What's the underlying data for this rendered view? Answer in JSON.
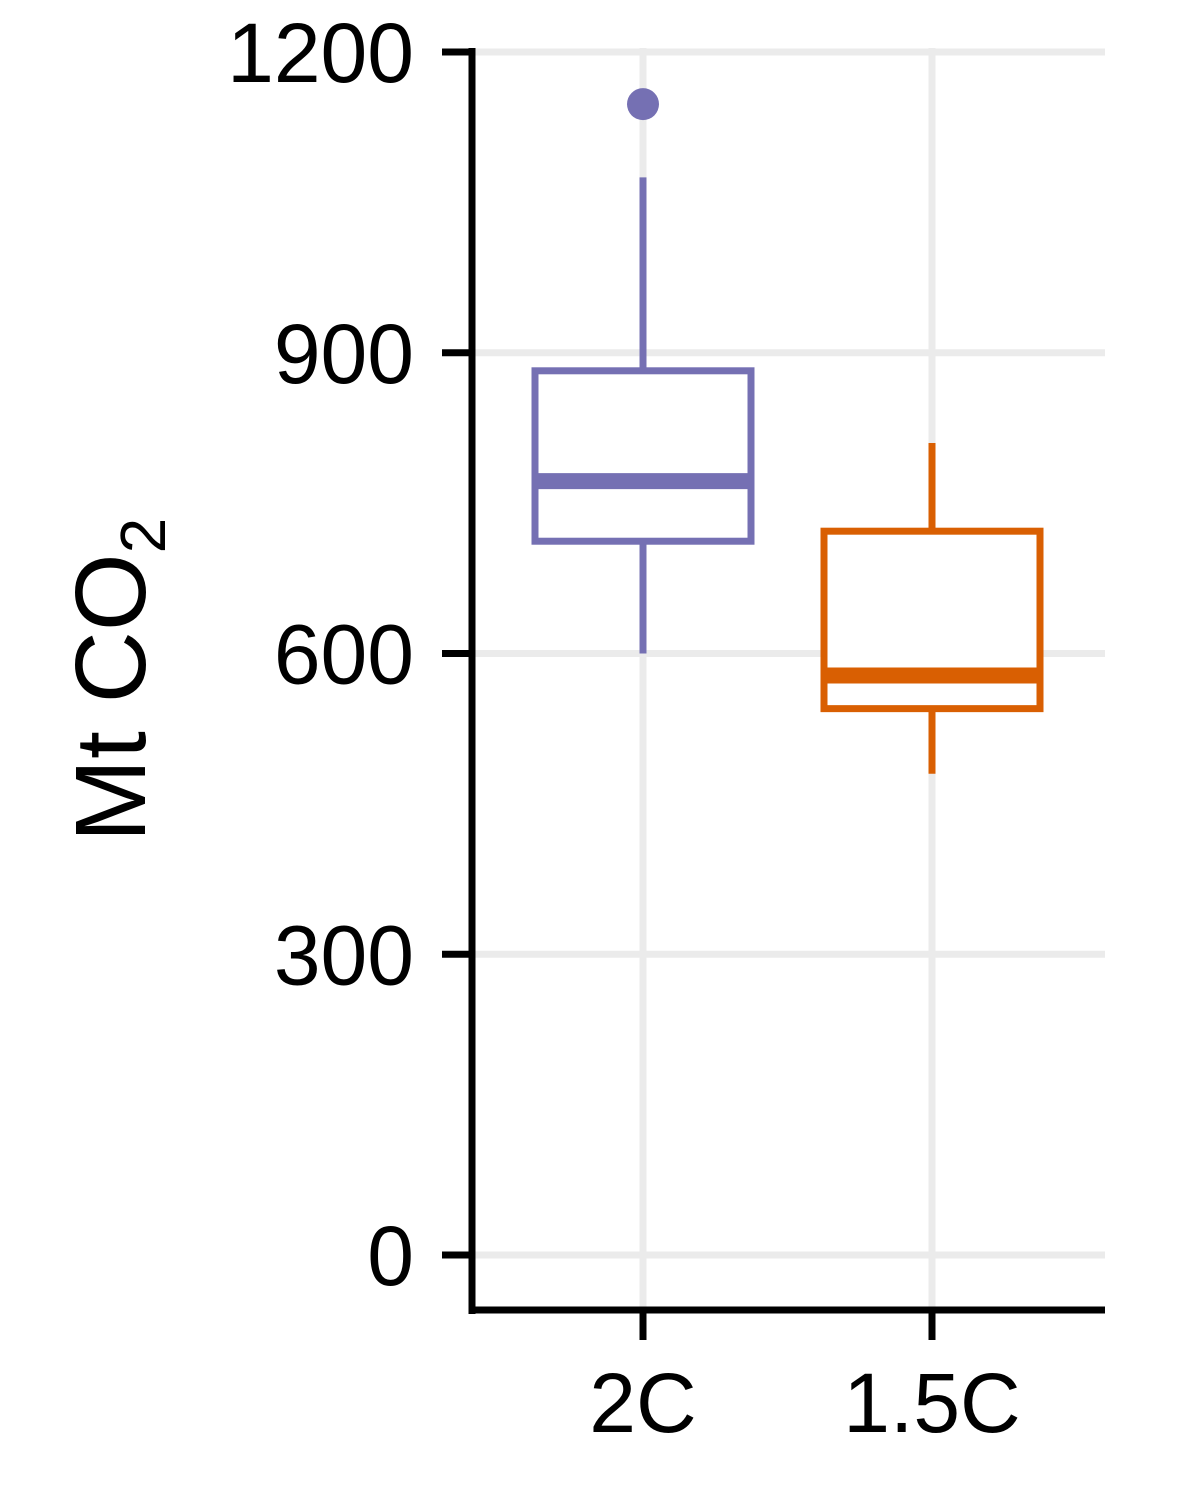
{
  "chart_data": {
    "type": "boxplot",
    "title": "",
    "xlabel": "",
    "ylabel": "Mt CO",
    "ylabel_subscript": "2",
    "ylim": [
      -50,
      1200
    ],
    "yticks": [
      0,
      300,
      600,
      900,
      1200
    ],
    "ytick_labels": [
      "0",
      "300",
      "600",
      "900",
      "1200"
    ],
    "categories": [
      "2C",
      "1.5C"
    ],
    "grid": true,
    "legend": "none",
    "series": [
      {
        "category": "2C",
        "color": "#7570b3",
        "whisker_low": 600,
        "q1": 712,
        "median": 772,
        "q3": 882,
        "whisker_high": 1075,
        "outliers": [
          1148
        ]
      },
      {
        "category": "1.5C",
        "color": "#d95f02",
        "whisker_low": 480,
        "q1": 545,
        "median": 578,
        "q3": 722,
        "whisker_high": 810,
        "outliers": []
      }
    ]
  }
}
